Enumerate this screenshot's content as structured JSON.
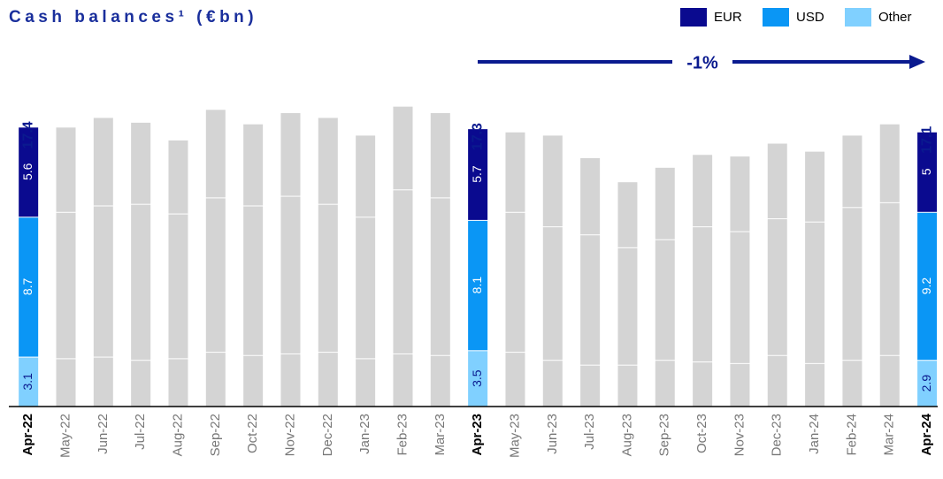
{
  "chart_data": {
    "type": "stacked_bar",
    "title": "Cash balances¹ (€bn)",
    "annotation": "-1%",
    "categories": [
      "Apr-22",
      "May-22",
      "Jun-22",
      "Jul-22",
      "Aug-22",
      "Sep-22",
      "Oct-22",
      "Nov-22",
      "Dec-22",
      "Jan-23",
      "Feb-23",
      "Mar-23",
      "Apr-23",
      "May-23",
      "Jun-23",
      "Jul-23",
      "Aug-23",
      "Sep-23",
      "Oct-23",
      "Nov-23",
      "Dec-23",
      "Jan-24",
      "Feb-24",
      "Mar-24",
      "Apr-24"
    ],
    "series": [
      {
        "name": "EUR",
        "color": "#0a0a8f",
        "values": [
          5.6,
          5.3,
          5.5,
          5.1,
          4.6,
          5.5,
          5.1,
          5.2,
          5.4,
          5.1,
          5.2,
          5.3,
          5.7,
          5.0,
          5.7,
          4.8,
          4.1,
          4.5,
          4.5,
          4.7,
          4.7,
          4.4,
          4.5,
          4.9,
          5.0
        ]
      },
      {
        "name": "USD",
        "color": "#0a96f5",
        "values": [
          8.7,
          9.1,
          9.4,
          9.7,
          9.0,
          9.6,
          9.3,
          9.8,
          9.2,
          8.8,
          10.2,
          9.8,
          8.1,
          8.7,
          8.3,
          8.1,
          7.3,
          7.5,
          8.4,
          8.2,
          8.5,
          8.8,
          9.5,
          9.5,
          9.2
        ]
      },
      {
        "name": "Other",
        "color": "#80d0ff",
        "values": [
          3.1,
          3.0,
          3.1,
          2.9,
          3.0,
          3.4,
          3.2,
          3.3,
          3.4,
          3.0,
          3.3,
          3.2,
          3.5,
          3.4,
          2.9,
          2.6,
          2.6,
          2.9,
          2.8,
          2.7,
          3.2,
          2.7,
          2.9,
          3.2,
          2.9
        ]
      }
    ],
    "totals": [
      17.4,
      null,
      null,
      null,
      null,
      null,
      null,
      null,
      null,
      null,
      null,
      null,
      17.3,
      null,
      null,
      null,
      null,
      null,
      null,
      null,
      null,
      null,
      null,
      null,
      17.1
    ],
    "muted_color": "#d4d4d4",
    "ylim": [
      0,
      20
    ]
  }
}
